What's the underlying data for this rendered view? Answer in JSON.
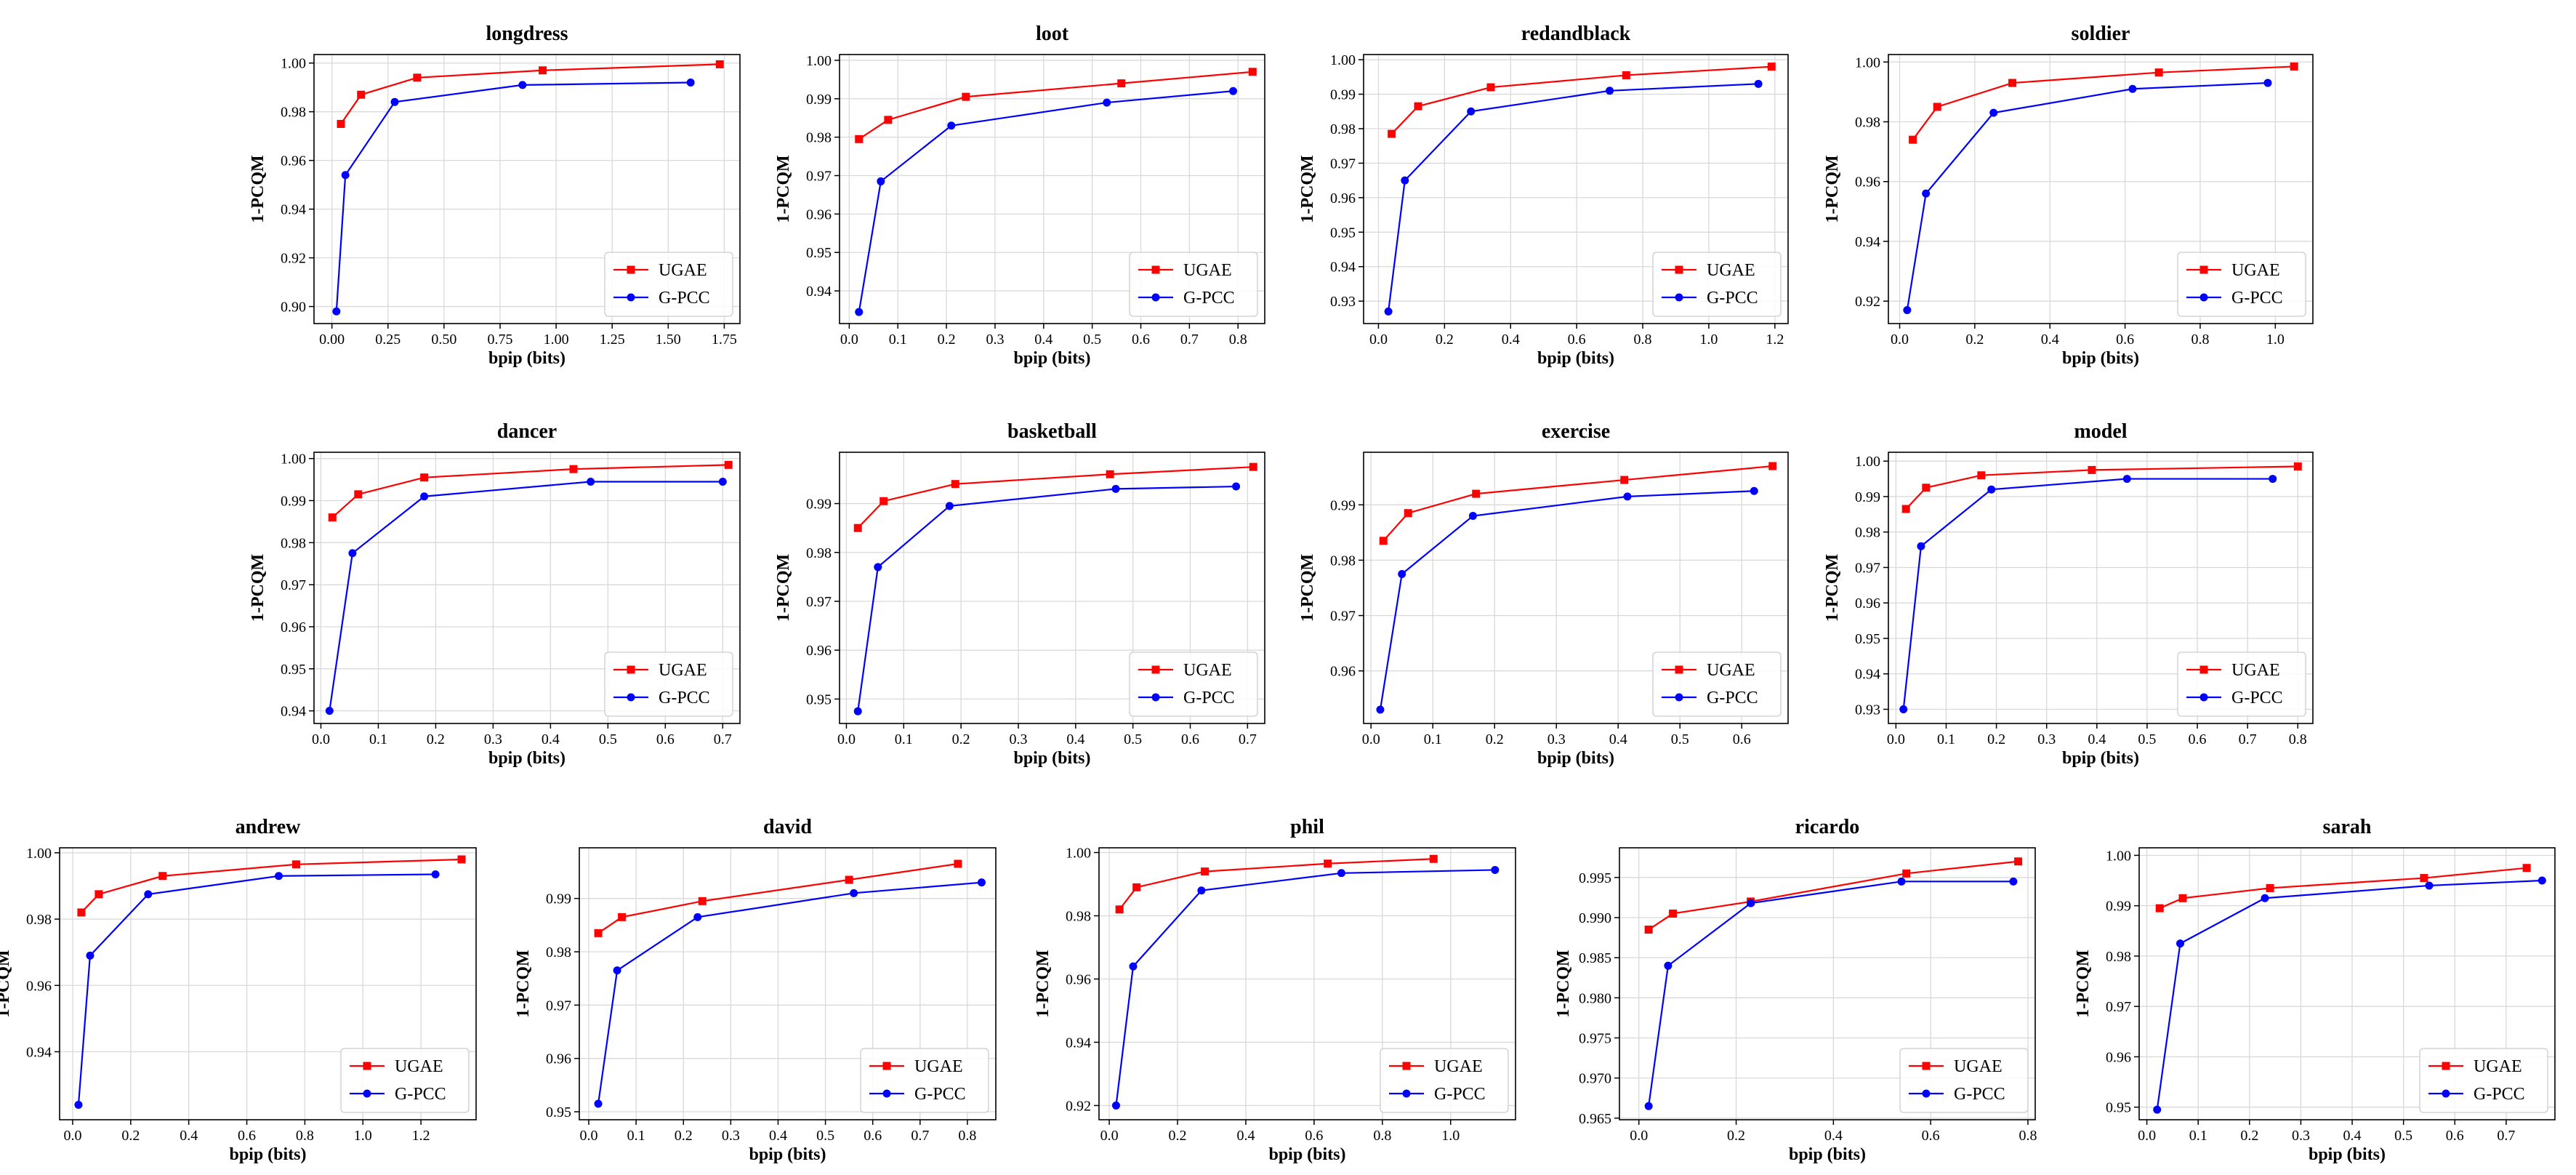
{
  "figure": {
    "xlabel": "bpip (bits)",
    "ylabel": "1-PCQM",
    "legend_placement": "lower-right",
    "grid": true,
    "colors": {
      "UGAE": "#ff0000",
      "G-PCC": "#0000ff"
    }
  },
  "chart_data": [
    {
      "type": "line",
      "title": "longdress",
      "xlabel": "bpip (bits)",
      "ylabel": "1-PCQM",
      "xticks": [
        0.0,
        0.25,
        0.5,
        0.75,
        1.0,
        1.25,
        1.5,
        1.75
      ],
      "xtick_labels": [
        "0.00",
        "0.25",
        "0.50",
        "0.75",
        "1.00",
        "1.25",
        "1.50",
        "1.75"
      ],
      "yticks": [
        0.9,
        0.92,
        0.94,
        0.96,
        0.98,
        1.0
      ],
      "ytick_labels": [
        "0.90",
        "0.92",
        "0.94",
        "0.96",
        "0.98",
        "1.00"
      ],
      "xlim": [
        -0.08,
        1.82
      ],
      "ylim": [
        0.893,
        1.0035
      ],
      "legend": "lower-right",
      "grid": true,
      "series": [
        {
          "name": "UGAE",
          "color": "#ff0000",
          "marker": "square",
          "x": [
            0.04,
            0.13,
            0.38,
            0.94,
            1.73
          ],
          "y": [
            0.975,
            0.987,
            0.994,
            0.997,
            0.9995
          ]
        },
        {
          "name": "G-PCC",
          "color": "#0000ff",
          "marker": "circle",
          "x": [
            0.02,
            0.06,
            0.28,
            0.85,
            1.6
          ],
          "y": [
            0.898,
            0.954,
            0.984,
            0.991,
            0.992
          ]
        }
      ]
    },
    {
      "type": "line",
      "title": "loot",
      "xlabel": "bpip (bits)",
      "ylabel": "1-PCQM",
      "xticks": [
        0.0,
        0.1,
        0.2,
        0.3,
        0.4,
        0.5,
        0.6,
        0.7,
        0.8
      ],
      "xtick_labels": [
        "0.0",
        "0.1",
        "0.2",
        "0.3",
        "0.4",
        "0.5",
        "0.6",
        "0.7",
        "0.8"
      ],
      "yticks": [
        0.94,
        0.95,
        0.96,
        0.97,
        0.98,
        0.99,
        1.0
      ],
      "ytick_labels": [
        "0.94",
        "0.95",
        "0.96",
        "0.97",
        "0.98",
        "0.99",
        "1.00"
      ],
      "xlim": [
        -0.02,
        0.855
      ],
      "ylim": [
        0.9315,
        1.0015
      ],
      "legend": "lower-right",
      "grid": true,
      "series": [
        {
          "name": "UGAE",
          "color": "#ff0000",
          "marker": "square",
          "x": [
            0.02,
            0.08,
            0.24,
            0.56,
            0.83
          ],
          "y": [
            0.9795,
            0.9845,
            0.9905,
            0.994,
            0.997
          ]
        },
        {
          "name": "G-PCC",
          "color": "#0000ff",
          "marker": "circle",
          "x": [
            0.02,
            0.065,
            0.21,
            0.53,
            0.79
          ],
          "y": [
            0.9345,
            0.9685,
            0.983,
            0.989,
            0.992
          ]
        }
      ]
    },
    {
      "type": "line",
      "title": "redandblack",
      "xlabel": "bpip (bits)",
      "ylabel": "1-PCQM",
      "xticks": [
        0.0,
        0.2,
        0.4,
        0.6,
        0.8,
        1.0,
        1.2
      ],
      "xtick_labels": [
        "0.0",
        "0.2",
        "0.4",
        "0.6",
        "0.8",
        "1.0",
        "1.2"
      ],
      "yticks": [
        0.93,
        0.94,
        0.95,
        0.96,
        0.97,
        0.98,
        0.99,
        1.0
      ],
      "ytick_labels": [
        "0.93",
        "0.94",
        "0.95",
        "0.96",
        "0.97",
        "0.98",
        "0.99",
        "1.00"
      ],
      "xlim": [
        -0.045,
        1.24
      ],
      "ylim": [
        0.9235,
        1.0015
      ],
      "legend": "lower-right",
      "grid": true,
      "series": [
        {
          "name": "UGAE",
          "color": "#ff0000",
          "marker": "square",
          "x": [
            0.04,
            0.12,
            0.34,
            0.75,
            1.19
          ],
          "y": [
            0.9785,
            0.9865,
            0.992,
            0.9955,
            0.998
          ]
        },
        {
          "name": "G-PCC",
          "color": "#0000ff",
          "marker": "circle",
          "x": [
            0.03,
            0.08,
            0.28,
            0.7,
            1.15
          ],
          "y": [
            0.927,
            0.965,
            0.985,
            0.991,
            0.993
          ]
        }
      ]
    },
    {
      "type": "line",
      "title": "soldier",
      "xlabel": "bpip (bits)",
      "ylabel": "1-PCQM",
      "xticks": [
        0.0,
        0.2,
        0.4,
        0.6,
        0.8,
        1.0
      ],
      "xtick_labels": [
        "0.0",
        "0.2",
        "0.4",
        "0.6",
        "0.8",
        "1.0"
      ],
      "yticks": [
        0.92,
        0.94,
        0.96,
        0.98,
        1.0
      ],
      "ytick_labels": [
        "0.92",
        "0.94",
        "0.96",
        "0.98",
        "1.00"
      ],
      "xlim": [
        -0.03,
        1.1
      ],
      "ylim": [
        0.9125,
        1.0025
      ],
      "legend": "lower-right",
      "grid": true,
      "series": [
        {
          "name": "UGAE",
          "color": "#ff0000",
          "marker": "square",
          "x": [
            0.035,
            0.1,
            0.3,
            0.69,
            1.05
          ],
          "y": [
            0.974,
            0.985,
            0.993,
            0.9965,
            0.9985
          ]
        },
        {
          "name": "G-PCC",
          "color": "#0000ff",
          "marker": "circle",
          "x": [
            0.02,
            0.07,
            0.25,
            0.62,
            0.98
          ],
          "y": [
            0.917,
            0.956,
            0.983,
            0.991,
            0.993
          ]
        }
      ]
    },
    {
      "type": "line",
      "title": "dancer",
      "xlabel": "bpip (bits)",
      "ylabel": "1-PCQM",
      "xticks": [
        0.0,
        0.1,
        0.2,
        0.3,
        0.4,
        0.5,
        0.6,
        0.7
      ],
      "xtick_labels": [
        "0.0",
        "0.1",
        "0.2",
        "0.3",
        "0.4",
        "0.5",
        "0.6",
        "0.7"
      ],
      "yticks": [
        0.94,
        0.95,
        0.96,
        0.97,
        0.98,
        0.99,
        1.0
      ],
      "ytick_labels": [
        "0.94",
        "0.95",
        "0.96",
        "0.97",
        "0.98",
        "0.99",
        "1.00"
      ],
      "xlim": [
        -0.012,
        0.73
      ],
      "ylim": [
        0.937,
        1.0015
      ],
      "legend": "lower-right",
      "grid": true,
      "series": [
        {
          "name": "UGAE",
          "color": "#ff0000",
          "marker": "square",
          "x": [
            0.02,
            0.065,
            0.18,
            0.44,
            0.71
          ],
          "y": [
            0.986,
            0.9915,
            0.9955,
            0.9975,
            0.9985
          ]
        },
        {
          "name": "G-PCC",
          "color": "#0000ff",
          "marker": "circle",
          "x": [
            0.015,
            0.055,
            0.18,
            0.47,
            0.7
          ],
          "y": [
            0.94,
            0.9775,
            0.991,
            0.9945,
            0.9945
          ]
        }
      ]
    },
    {
      "type": "line",
      "title": "basketball",
      "xlabel": "bpip (bits)",
      "ylabel": "1-PCQM",
      "xticks": [
        0.0,
        0.1,
        0.2,
        0.3,
        0.4,
        0.5,
        0.6,
        0.7
      ],
      "xtick_labels": [
        "0.0",
        "0.1",
        "0.2",
        "0.3",
        "0.4",
        "0.5",
        "0.6",
        "0.7"
      ],
      "yticks": [
        0.95,
        0.96,
        0.97,
        0.98,
        0.99
      ],
      "ytick_labels": [
        "0.95",
        "0.96",
        "0.97",
        "0.98",
        "0.99"
      ],
      "xlim": [
        -0.012,
        0.73
      ],
      "ylim": [
        0.945,
        1.0005
      ],
      "legend": "lower-right",
      "grid": true,
      "series": [
        {
          "name": "UGAE",
          "color": "#ff0000",
          "marker": "square",
          "x": [
            0.02,
            0.065,
            0.19,
            0.46,
            0.71
          ],
          "y": [
            0.985,
            0.9905,
            0.994,
            0.996,
            0.9975
          ]
        },
        {
          "name": "G-PCC",
          "color": "#0000ff",
          "marker": "circle",
          "x": [
            0.02,
            0.055,
            0.18,
            0.47,
            0.68
          ],
          "y": [
            0.9475,
            0.977,
            0.9895,
            0.993,
            0.9935
          ]
        }
      ]
    },
    {
      "type": "line",
      "title": "exercise",
      "xlabel": "bpip (bits)",
      "ylabel": "1-PCQM",
      "xticks": [
        0.0,
        0.1,
        0.2,
        0.3,
        0.4,
        0.5,
        0.6
      ],
      "xtick_labels": [
        "0.0",
        "0.1",
        "0.2",
        "0.3",
        "0.4",
        "0.5",
        "0.6"
      ],
      "yticks": [
        0.96,
        0.97,
        0.98,
        0.99
      ],
      "ytick_labels": [
        "0.96",
        "0.97",
        "0.98",
        "0.99"
      ],
      "xlim": [
        -0.012,
        0.675
      ],
      "ylim": [
        0.9505,
        0.9995
      ],
      "legend": "lower-right",
      "grid": true,
      "series": [
        {
          "name": "UGAE",
          "color": "#ff0000",
          "marker": "square",
          "x": [
            0.02,
            0.06,
            0.17,
            0.41,
            0.65
          ],
          "y": [
            0.9835,
            0.9885,
            0.992,
            0.9945,
            0.997
          ]
        },
        {
          "name": "G-PCC",
          "color": "#0000ff",
          "marker": "circle",
          "x": [
            0.015,
            0.05,
            0.165,
            0.415,
            0.62
          ],
          "y": [
            0.953,
            0.9775,
            0.988,
            0.9915,
            0.9925
          ]
        }
      ]
    },
    {
      "type": "line",
      "title": "model",
      "xlabel": "bpip (bits)",
      "ylabel": "1-PCQM",
      "xticks": [
        0.0,
        0.1,
        0.2,
        0.3,
        0.4,
        0.5,
        0.6,
        0.7,
        0.8
      ],
      "xtick_labels": [
        "0.0",
        "0.1",
        "0.2",
        "0.3",
        "0.4",
        "0.5",
        "0.6",
        "0.7",
        "0.8"
      ],
      "yticks": [
        0.93,
        0.94,
        0.95,
        0.96,
        0.97,
        0.98,
        0.99,
        1.0
      ],
      "ytick_labels": [
        "0.93",
        "0.94",
        "0.95",
        "0.96",
        "0.97",
        "0.98",
        "0.99",
        "1.00"
      ],
      "xlim": [
        -0.015,
        0.83
      ],
      "ylim": [
        0.926,
        1.0025
      ],
      "legend": "lower-right",
      "grid": true,
      "series": [
        {
          "name": "UGAE",
          "color": "#ff0000",
          "marker": "square",
          "x": [
            0.02,
            0.06,
            0.17,
            0.39,
            0.8
          ],
          "y": [
            0.9865,
            0.9925,
            0.996,
            0.9975,
            0.9985
          ]
        },
        {
          "name": "G-PCC",
          "color": "#0000ff",
          "marker": "circle",
          "x": [
            0.015,
            0.05,
            0.19,
            0.46,
            0.75
          ],
          "y": [
            0.93,
            0.976,
            0.992,
            0.995,
            0.995
          ]
        }
      ]
    },
    {
      "type": "line",
      "title": "andrew",
      "xlabel": "bpip (bits)",
      "ylabel": "1-PCQM",
      "xticks": [
        0.0,
        0.2,
        0.4,
        0.6,
        0.8,
        1.0,
        1.2
      ],
      "xtick_labels": [
        "0.0",
        "0.2",
        "0.4",
        "0.6",
        "0.8",
        "1.0",
        "1.2"
      ],
      "yticks": [
        0.94,
        0.96,
        0.98,
        1.0
      ],
      "ytick_labels": [
        "0.94",
        "0.96",
        "0.98",
        "1.00"
      ],
      "xlim": [
        -0.045,
        1.39
      ],
      "ylim": [
        0.9195,
        1.0015
      ],
      "legend": "lower-right",
      "grid": true,
      "series": [
        {
          "name": "UGAE",
          "color": "#ff0000",
          "marker": "square",
          "x": [
            0.03,
            0.09,
            0.31,
            0.77,
            1.34
          ],
          "y": [
            0.982,
            0.9875,
            0.993,
            0.9965,
            0.998
          ]
        },
        {
          "name": "G-PCC",
          "color": "#0000ff",
          "marker": "circle",
          "x": [
            0.02,
            0.06,
            0.26,
            0.71,
            1.25
          ],
          "y": [
            0.924,
            0.969,
            0.9875,
            0.993,
            0.9935
          ]
        }
      ]
    },
    {
      "type": "line",
      "title": "david",
      "xlabel": "bpip (bits)",
      "ylabel": "1-PCQM",
      "xticks": [
        0.0,
        0.1,
        0.2,
        0.3,
        0.4,
        0.5,
        0.6,
        0.7,
        0.8
      ],
      "xtick_labels": [
        "0.0",
        "0.1",
        "0.2",
        "0.3",
        "0.4",
        "0.5",
        "0.6",
        "0.7",
        "0.8"
      ],
      "yticks": [
        0.95,
        0.96,
        0.97,
        0.98,
        0.99
      ],
      "ytick_labels": [
        "0.95",
        "0.96",
        "0.97",
        "0.98",
        "0.99"
      ],
      "xlim": [
        -0.02,
        0.86
      ],
      "ylim": [
        0.9485,
        0.9995
      ],
      "legend": "lower-right",
      "grid": true,
      "series": [
        {
          "name": "UGAE",
          "color": "#ff0000",
          "marker": "square",
          "x": [
            0.02,
            0.07,
            0.24,
            0.55,
            0.78
          ],
          "y": [
            0.9835,
            0.9865,
            0.9895,
            0.9935,
            0.9965
          ]
        },
        {
          "name": "G-PCC",
          "color": "#0000ff",
          "marker": "circle",
          "x": [
            0.02,
            0.06,
            0.23,
            0.56,
            0.83
          ],
          "y": [
            0.9515,
            0.9765,
            0.9865,
            0.991,
            0.993
          ]
        }
      ]
    },
    {
      "type": "line",
      "title": "phil",
      "xlabel": "bpip (bits)",
      "ylabel": "1-PCQM",
      "xticks": [
        0.0,
        0.2,
        0.4,
        0.6,
        0.8,
        1.0
      ],
      "xtick_labels": [
        "0.0",
        "0.2",
        "0.4",
        "0.6",
        "0.8",
        "1.0"
      ],
      "yticks": [
        0.92,
        0.94,
        0.96,
        0.98,
        1.0
      ],
      "ytick_labels": [
        "0.92",
        "0.94",
        "0.96",
        "0.98",
        "1.00"
      ],
      "xlim": [
        -0.03,
        1.19
      ],
      "ylim": [
        0.9155,
        1.0015
      ],
      "legend": "lower-right",
      "grid": true,
      "series": [
        {
          "name": "UGAE",
          "color": "#ff0000",
          "marker": "square",
          "x": [
            0.03,
            0.08,
            0.28,
            0.64,
            0.95
          ],
          "y": [
            0.982,
            0.989,
            0.994,
            0.9965,
            0.998
          ]
        },
        {
          "name": "G-PCC",
          "color": "#0000ff",
          "marker": "circle",
          "x": [
            0.02,
            0.07,
            0.27,
            0.68,
            1.13
          ],
          "y": [
            0.92,
            0.964,
            0.988,
            0.9935,
            0.9945
          ]
        }
      ]
    },
    {
      "type": "line",
      "title": "ricardo",
      "xlabel": "bpip (bits)",
      "ylabel": "1-PCQM",
      "xticks": [
        0.0,
        0.2,
        0.4,
        0.6,
        0.8
      ],
      "xtick_labels": [
        "0.0",
        "0.2",
        "0.4",
        "0.6",
        "0.8"
      ],
      "yticks": [
        0.965,
        0.97,
        0.975,
        0.98,
        0.985,
        0.99,
        0.995
      ],
      "ytick_labels": [
        "0.965",
        "0.970",
        "0.975",
        "0.980",
        "0.985",
        "0.990",
        "0.995"
      ],
      "xlim": [
        -0.04,
        0.815
      ],
      "ylim": [
        0.9648,
        0.9987
      ],
      "legend": "lower-right",
      "grid": true,
      "series": [
        {
          "name": "UGAE",
          "color": "#ff0000",
          "marker": "square",
          "x": [
            0.02,
            0.07,
            0.23,
            0.55,
            0.78
          ],
          "y": [
            0.9885,
            0.9905,
            0.992,
            0.9955,
            0.997
          ]
        },
        {
          "name": "G-PCC",
          "color": "#0000ff",
          "marker": "circle",
          "x": [
            0.02,
            0.06,
            0.23,
            0.54,
            0.77
          ],
          "y": [
            0.9665,
            0.984,
            0.9918,
            0.9945,
            0.9945
          ]
        }
      ]
    },
    {
      "type": "line",
      "title": "sarah",
      "xlabel": "bpip (bits)",
      "ylabel": "1-PCQM",
      "xticks": [
        0.0,
        0.1,
        0.2,
        0.3,
        0.4,
        0.5,
        0.6,
        0.7
      ],
      "xtick_labels": [
        "0.0",
        "0.1",
        "0.2",
        "0.3",
        "0.4",
        "0.5",
        "0.6",
        "0.7"
      ],
      "yticks": [
        0.95,
        0.96,
        0.97,
        0.98,
        0.99,
        1.0
      ],
      "ytick_labels": [
        "0.95",
        "0.96",
        "0.97",
        "0.98",
        "0.99",
        "1.00"
      ],
      "xlim": [
        -0.015,
        0.795
      ],
      "ylim": [
        0.9475,
        1.0015
      ],
      "legend": "lower-right",
      "grid": true,
      "series": [
        {
          "name": "UGAE",
          "color": "#ff0000",
          "marker": "square",
          "x": [
            0.025,
            0.07,
            0.24,
            0.54,
            0.74
          ],
          "y": [
            0.9895,
            0.9915,
            0.9935,
            0.9955,
            0.9975
          ]
        },
        {
          "name": "G-PCC",
          "color": "#0000ff",
          "marker": "circle",
          "x": [
            0.02,
            0.065,
            0.23,
            0.55,
            0.77
          ],
          "y": [
            0.9495,
            0.9825,
            0.9915,
            0.994,
            0.995
          ]
        }
      ]
    }
  ]
}
